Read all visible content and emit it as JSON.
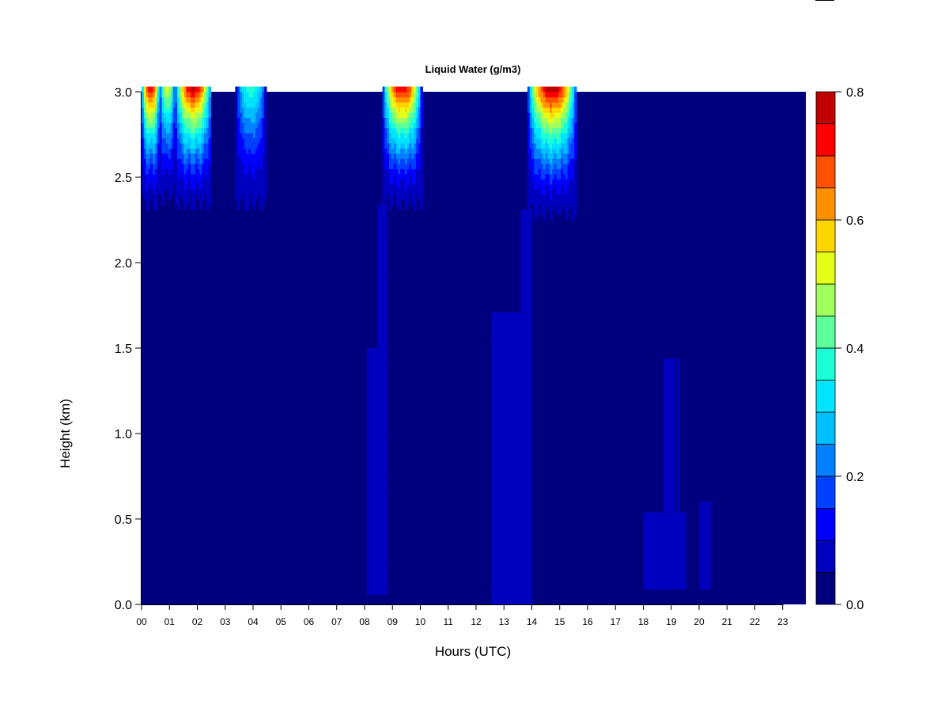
{
  "chart_data": {
    "type": "heatmap",
    "title": "Liquid Water (g/m3)",
    "xlabel": "Hours (UTC)",
    "ylabel": "Height (km)",
    "xlim": [
      0,
      23.83
    ],
    "ylim": [
      0,
      3.0
    ],
    "x_ticks": [
      "00",
      "01",
      "02",
      "03",
      "04",
      "05",
      "06",
      "07",
      "08",
      "09",
      "10",
      "11",
      "12",
      "13",
      "14",
      "15",
      "16",
      "17",
      "18",
      "19",
      "20",
      "21",
      "22",
      "23"
    ],
    "y_ticks": [
      "0.0",
      "0.5",
      "1.0",
      "1.5",
      "2.0",
      "2.5",
      "3.0"
    ],
    "y_tick_values": [
      0,
      0.5,
      1.0,
      1.5,
      2.0,
      2.5,
      3.0
    ],
    "colorbar": {
      "levels": [
        0,
        0.05,
        0.1,
        0.15,
        0.2,
        0.25,
        0.3,
        0.35,
        0.4,
        0.45,
        0.5,
        0.55,
        0.6,
        0.65,
        0.7,
        0.75,
        0.8
      ],
      "colors": [
        "#00007f",
        "#0000bf",
        "#0000ff",
        "#0040ff",
        "#0080ff",
        "#00bfff",
        "#00e5ff",
        "#1affd5",
        "#5cff9a",
        "#a0ff5c",
        "#e5ff1a",
        "#ffd500",
        "#ff9000",
        "#ff5000",
        "#ff0000",
        "#c00000",
        "#7f0000"
      ],
      "tick_labels": [
        "0.0",
        "0.2",
        "0.4",
        "0.6",
        "0.8"
      ],
      "tick_values": [
        0,
        0.2,
        0.4,
        0.6,
        0.8
      ]
    },
    "cloud_events": [
      {
        "start_h": 0.0,
        "end_h": 0.65,
        "peak": 0.72,
        "base_km": 2.35
      },
      {
        "start_h": 0.65,
        "end_h": 1.2,
        "peak": 0.5,
        "base_km": 2.4
      },
      {
        "start_h": 1.2,
        "end_h": 2.5,
        "peak": 0.73,
        "base_km": 2.35
      },
      {
        "start_h": 3.4,
        "end_h": 4.45,
        "peak": 0.37,
        "base_km": 2.35
      },
      {
        "start_h": 8.65,
        "end_h": 10.05,
        "peak": 0.72,
        "base_km": 2.35
      },
      {
        "start_h": 13.85,
        "end_h": 15.6,
        "peak": 0.76,
        "base_km": 2.3
      }
    ],
    "weak_regions": [
      {
        "start_h": 8.05,
        "end_h": 8.75,
        "bottom_km": 0.05,
        "top_km": 1.5,
        "value": 0.07
      },
      {
        "start_h": 8.45,
        "end_h": 8.8,
        "bottom_km": 0.05,
        "top_km": 2.35,
        "value": 0.07
      },
      {
        "start_h": 12.6,
        "end_h": 13.9,
        "bottom_km": 0.0,
        "top_km": 1.7,
        "value": 0.07
      },
      {
        "start_h": 13.6,
        "end_h": 14.0,
        "bottom_km": 0.0,
        "top_km": 2.3,
        "value": 0.07
      },
      {
        "start_h": 18.0,
        "end_h": 19.5,
        "bottom_km": 0.1,
        "top_km": 0.55,
        "value": 0.07
      },
      {
        "start_h": 18.7,
        "end_h": 19.3,
        "bottom_km": 0.1,
        "top_km": 1.45,
        "value": 0.06
      },
      {
        "start_h": 20.0,
        "end_h": 20.4,
        "bottom_km": 0.1,
        "top_km": 0.6,
        "value": 0.06
      }
    ]
  }
}
